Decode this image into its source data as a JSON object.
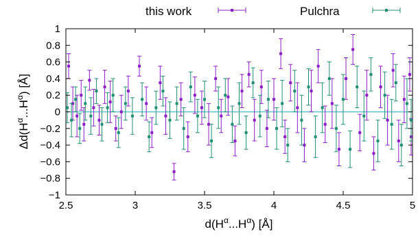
{
  "chart_data": {
    "type": "scatter",
    "xlabel": {
      "base": "d(H",
      "sup1": "α",
      "mid": "...H",
      "sup2": "α",
      "end": ") [Å]"
    },
    "ylabel": {
      "base": "Δd(H",
      "sup1": "α",
      "mid": "...H",
      "sup2": "α",
      "end": ") [Å]"
    },
    "xlim": [
      2.5,
      5
    ],
    "ylim": [
      -1,
      1
    ],
    "x_ticks": [
      2.5,
      3,
      3.5,
      4,
      4.5,
      5
    ],
    "x_tick_labels": [
      "2.5",
      "3",
      "3.5",
      "4",
      "4.5",
      "5"
    ],
    "y_ticks": [
      -1,
      -0.8,
      -0.6,
      -0.4,
      -0.2,
      0,
      0.2,
      0.4,
      0.6,
      0.8,
      1
    ],
    "y_tick_labels": [
      "−1",
      "−0.8",
      "−0.6",
      "−0.4",
      "−0.2",
      "0",
      "0.2",
      "0.4",
      "0.6",
      "0.8",
      "1"
    ],
    "grid": false,
    "legend_position": "top-outside",
    "zero_line": {
      "y": 0,
      "color": "#5fc3c9"
    },
    "series": [
      {
        "name": "this work",
        "color": "#8b1fc6",
        "marker": "square",
        "points": [
          {
            "x": 2.52,
            "y": 0.55,
            "e": 0.15
          },
          {
            "x": 2.55,
            "y": 0.1,
            "e": 0.2
          },
          {
            "x": 2.58,
            "y": -0.05,
            "e": 0.25
          },
          {
            "x": 2.61,
            "y": 0.2,
            "e": 0.18
          },
          {
            "x": 2.63,
            "y": -0.15,
            "e": 0.2
          },
          {
            "x": 2.67,
            "y": 0.38,
            "e": 0.12
          },
          {
            "x": 2.7,
            "y": 0.05,
            "e": 0.22
          },
          {
            "x": 2.74,
            "y": -0.1,
            "e": 0.18
          },
          {
            "x": 2.78,
            "y": 0.3,
            "e": 0.2
          },
          {
            "x": 2.82,
            "y": 0.12,
            "e": 0.25
          },
          {
            "x": 2.86,
            "y": -0.2,
            "e": 0.15
          },
          {
            "x": 2.9,
            "y": 0.0,
            "e": 0.2
          },
          {
            "x": 2.95,
            "y": 0.25,
            "e": 0.18
          },
          {
            "x": 3.03,
            "y": 0.55,
            "e": 0.12
          },
          {
            "x": 3.08,
            "y": 0.1,
            "e": 0.2
          },
          {
            "x": 3.12,
            "y": -0.25,
            "e": 0.18
          },
          {
            "x": 3.18,
            "y": 0.35,
            "e": 0.2
          },
          {
            "x": 3.22,
            "y": -0.05,
            "e": 0.22
          },
          {
            "x": 3.28,
            "y": -0.72,
            "e": 0.1
          },
          {
            "x": 3.33,
            "y": 0.15,
            "e": 0.2
          },
          {
            "x": 3.38,
            "y": -0.3,
            "e": 0.18
          },
          {
            "x": 3.43,
            "y": 0.2,
            "e": 0.22
          },
          {
            "x": 3.48,
            "y": 0.05,
            "e": 0.2
          },
          {
            "x": 3.53,
            "y": -0.15,
            "e": 0.25
          },
          {
            "x": 3.58,
            "y": 0.4,
            "e": 0.15
          },
          {
            "x": 3.62,
            "y": -0.05,
            "e": 0.2
          },
          {
            "x": 3.67,
            "y": 0.18,
            "e": 0.22
          },
          {
            "x": 3.72,
            "y": -0.35,
            "e": 0.18
          },
          {
            "x": 3.77,
            "y": 0.25,
            "e": 0.2
          },
          {
            "x": 3.82,
            "y": 0.45,
            "e": 0.15
          },
          {
            "x": 3.86,
            "y": -0.1,
            "e": 0.25
          },
          {
            "x": 3.91,
            "y": 0.3,
            "e": 0.2
          },
          {
            "x": 3.95,
            "y": -0.2,
            "e": 0.22
          },
          {
            "x": 4.0,
            "y": 0.15,
            "e": 0.25
          },
          {
            "x": 4.05,
            "y": 0.7,
            "e": 0.18
          },
          {
            "x": 4.08,
            "y": -0.3,
            "e": 0.2
          },
          {
            "x": 4.12,
            "y": 0.35,
            "e": 0.22
          },
          {
            "x": 4.17,
            "y": 0.05,
            "e": 0.3
          },
          {
            "x": 4.22,
            "y": -0.4,
            "e": 0.2
          },
          {
            "x": 4.27,
            "y": 0.25,
            "e": 0.25
          },
          {
            "x": 4.32,
            "y": 0.55,
            "e": 0.2
          },
          {
            "x": 4.37,
            "y": -0.15,
            "e": 0.22
          },
          {
            "x": 4.42,
            "y": 0.1,
            "e": 0.3
          },
          {
            "x": 4.47,
            "y": -0.45,
            "e": 0.2
          },
          {
            "x": 4.52,
            "y": 0.4,
            "e": 0.25
          },
          {
            "x": 4.57,
            "y": 0.75,
            "e": 0.18
          },
          {
            "x": 4.62,
            "y": -0.25,
            "e": 0.22
          },
          {
            "x": 4.67,
            "y": 0.2,
            "e": 0.3
          },
          {
            "x": 4.72,
            "y": -0.5,
            "e": 0.2
          },
          {
            "x": 4.77,
            "y": 0.3,
            "e": 0.25
          },
          {
            "x": 4.82,
            "y": -0.1,
            "e": 0.3
          },
          {
            "x": 4.86,
            "y": 0.5,
            "e": 0.2
          },
          {
            "x": 4.9,
            "y": -0.35,
            "e": 0.25
          },
          {
            "x": 4.94,
            "y": 0.15,
            "e": 0.28
          },
          {
            "x": 4.98,
            "y": 0.45,
            "e": 0.2
          },
          {
            "x": 4.99,
            "y": -0.3,
            "e": 0.22
          }
        ]
      },
      {
        "name": "Pulchra",
        "color": "#1f8f73",
        "marker": "square",
        "points": [
          {
            "x": 2.51,
            "y": 0.05,
            "e": 0.18
          },
          {
            "x": 2.54,
            "y": -0.1,
            "e": 0.2
          },
          {
            "x": 2.57,
            "y": 0.15,
            "e": 0.15
          },
          {
            "x": 2.6,
            "y": -0.2,
            "e": 0.18
          },
          {
            "x": 2.64,
            "y": 0.1,
            "e": 0.2
          },
          {
            "x": 2.68,
            "y": -0.05,
            "e": 0.22
          },
          {
            "x": 2.72,
            "y": 0.25,
            "e": 0.15
          },
          {
            "x": 2.76,
            "y": -0.15,
            "e": 0.2
          },
          {
            "x": 2.8,
            "y": 0.05,
            "e": 0.18
          },
          {
            "x": 2.84,
            "y": 0.2,
            "e": 0.2
          },
          {
            "x": 2.88,
            "y": -0.25,
            "e": 0.18
          },
          {
            "x": 2.93,
            "y": 0.1,
            "e": 0.2
          },
          {
            "x": 2.98,
            "y": -0.05,
            "e": 0.22
          },
          {
            "x": 3.05,
            "y": 0.15,
            "e": 0.2
          },
          {
            "x": 3.1,
            "y": -0.3,
            "e": 0.18
          },
          {
            "x": 3.15,
            "y": 0.05,
            "e": 0.2
          },
          {
            "x": 3.2,
            "y": 0.25,
            "e": 0.18
          },
          {
            "x": 3.25,
            "y": -0.1,
            "e": 0.22
          },
          {
            "x": 3.3,
            "y": 0.1,
            "e": 0.2
          },
          {
            "x": 3.35,
            "y": -0.2,
            "e": 0.25
          },
          {
            "x": 3.4,
            "y": 0.3,
            "e": 0.18
          },
          {
            "x": 3.45,
            "y": -0.05,
            "e": 0.2
          },
          {
            "x": 3.5,
            "y": 0.15,
            "e": 0.22
          },
          {
            "x": 3.55,
            "y": -0.35,
            "e": 0.2
          },
          {
            "x": 3.6,
            "y": 0.05,
            "e": 0.25
          },
          {
            "x": 3.65,
            "y": 0.2,
            "e": 0.2
          },
          {
            "x": 3.7,
            "y": -0.15,
            "e": 0.22
          },
          {
            "x": 3.75,
            "y": 0.1,
            "e": 0.25
          },
          {
            "x": 3.8,
            "y": -0.25,
            "e": 0.2
          },
          {
            "x": 3.85,
            "y": 0.35,
            "e": 0.18
          },
          {
            "x": 3.9,
            "y": -0.05,
            "e": 0.25
          },
          {
            "x": 3.96,
            "y": 0.15,
            "e": 0.22
          },
          {
            "x": 4.02,
            "y": -0.2,
            "e": 0.25
          },
          {
            "x": 4.06,
            "y": 0.1,
            "e": 0.28
          },
          {
            "x": 4.1,
            "y": -0.4,
            "e": 0.2
          },
          {
            "x": 4.15,
            "y": 0.25,
            "e": 0.25
          },
          {
            "x": 4.2,
            "y": -0.1,
            "e": 0.3
          },
          {
            "x": 4.25,
            "y": 0.3,
            "e": 0.22
          },
          {
            "x": 4.3,
            "y": -0.3,
            "e": 0.25
          },
          {
            "x": 4.35,
            "y": 0.05,
            "e": 0.3
          },
          {
            "x": 4.4,
            "y": 0.4,
            "e": 0.2
          },
          {
            "x": 4.45,
            "y": -0.2,
            "e": 0.28
          },
          {
            "x": 4.5,
            "y": 0.15,
            "e": 0.3
          },
          {
            "x": 4.55,
            "y": -0.45,
            "e": 0.22
          },
          {
            "x": 4.6,
            "y": 0.3,
            "e": 0.25
          },
          {
            "x": 4.65,
            "y": -0.05,
            "e": 0.3
          },
          {
            "x": 4.7,
            "y": 0.45,
            "e": 0.2
          },
          {
            "x": 4.75,
            "y": -0.35,
            "e": 0.25
          },
          {
            "x": 4.8,
            "y": 0.2,
            "e": 0.28
          },
          {
            "x": 4.85,
            "y": -0.15,
            "e": 0.3
          },
          {
            "x": 4.88,
            "y": 0.35,
            "e": 0.22
          },
          {
            "x": 4.92,
            "y": -0.4,
            "e": 0.25
          },
          {
            "x": 4.96,
            "y": 0.1,
            "e": 0.3
          },
          {
            "x": 4.99,
            "y": -0.1,
            "e": 0.25
          }
        ]
      }
    ]
  }
}
